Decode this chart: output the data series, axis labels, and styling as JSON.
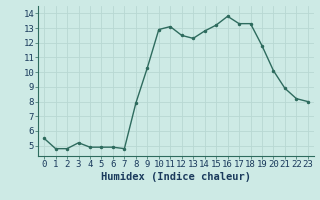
{
  "x": [
    0,
    1,
    2,
    3,
    4,
    5,
    6,
    7,
    8,
    9,
    10,
    11,
    12,
    13,
    14,
    15,
    16,
    17,
    18,
    19,
    20,
    21,
    22,
    23
  ],
  "y": [
    5.5,
    4.8,
    4.8,
    5.2,
    4.9,
    4.9,
    4.9,
    4.8,
    7.9,
    10.3,
    12.9,
    13.1,
    12.5,
    12.3,
    12.8,
    13.2,
    13.8,
    13.3,
    13.3,
    11.8,
    10.1,
    8.9,
    8.2,
    8.0
  ],
  "line_color": "#2e6b5e",
  "marker": ".",
  "marker_size": 3,
  "bg_color": "#cdeae5",
  "grid_color": "#b8d8d3",
  "xlabel": "Humidex (Indice chaleur)",
  "xlim": [
    -0.5,
    23.5
  ],
  "ylim": [
    4.3,
    14.5
  ],
  "yticks": [
    5,
    6,
    7,
    8,
    9,
    10,
    11,
    12,
    13,
    14
  ],
  "xticks": [
    0,
    1,
    2,
    3,
    4,
    5,
    6,
    7,
    8,
    9,
    10,
    11,
    12,
    13,
    14,
    15,
    16,
    17,
    18,
    19,
    20,
    21,
    22,
    23
  ],
  "xlabel_fontsize": 7.5,
  "tick_fontsize": 6.5,
  "linewidth": 1.0
}
